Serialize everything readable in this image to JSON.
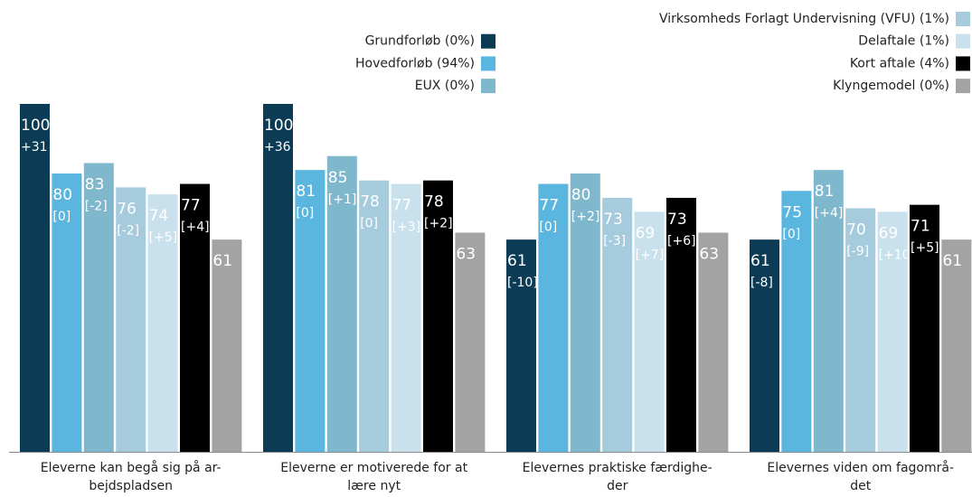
{
  "chart_data": {
    "type": "bar",
    "categories": [
      [
        "Eleverne kan begå sig på ar-",
        "bejdspladsen"
      ],
      [
        "Eleverne er motiverede for at",
        "lære nyt"
      ],
      [
        "Elevernes praktiske færdighe-",
        "der"
      ],
      [
        "Elevernes viden om fagområ-",
        "det"
      ]
    ],
    "ylim": [
      0,
      100
    ],
    "series": [
      {
        "name": "Grundforløb (0%)",
        "color": "#0b3b55",
        "values": [
          100,
          100,
          61,
          61
        ],
        "change_labels": [
          "+31",
          "+36",
          "[-10]",
          "[-8]"
        ]
      },
      {
        "name": "Hovedforløb (94%)",
        "color": "#5ab6de",
        "values": [
          80,
          81,
          77,
          75
        ],
        "change_labels": [
          "[0]",
          "[0]",
          "[0]",
          "[0]"
        ]
      },
      {
        "name": "EUX (0%)",
        "color": "#7fb7cc",
        "values": [
          83,
          85,
          80,
          81
        ],
        "change_labels": [
          "[-2]",
          "[+1]",
          "[+2]",
          "[+4]"
        ]
      },
      {
        "name": "Virksomheds Forlagt Undervisning (VFU) (1%)",
        "color": "#a5cbdc",
        "values": [
          76,
          78,
          73,
          70
        ],
        "change_labels": [
          "[-2]",
          "[0]",
          "[-3]",
          "[-9]"
        ]
      },
      {
        "name": "Delaftale (1%)",
        "color": "#c8e1ec",
        "values": [
          74,
          77,
          69,
          69
        ],
        "change_labels": [
          "[+5]",
          "[+3]",
          "[+7]",
          "[+10]"
        ]
      },
      {
        "name": "Kort aftale (4%)",
        "color": "#000000",
        "values": [
          77,
          78,
          73,
          71
        ],
        "change_labels": [
          "[+4]",
          "[+2]",
          "[+6]",
          "[+5]"
        ]
      },
      {
        "name": "Klyngemodel (0%)",
        "color": "#a3a3a3",
        "values": [
          61,
          63,
          63,
          61
        ]
      }
    ]
  }
}
